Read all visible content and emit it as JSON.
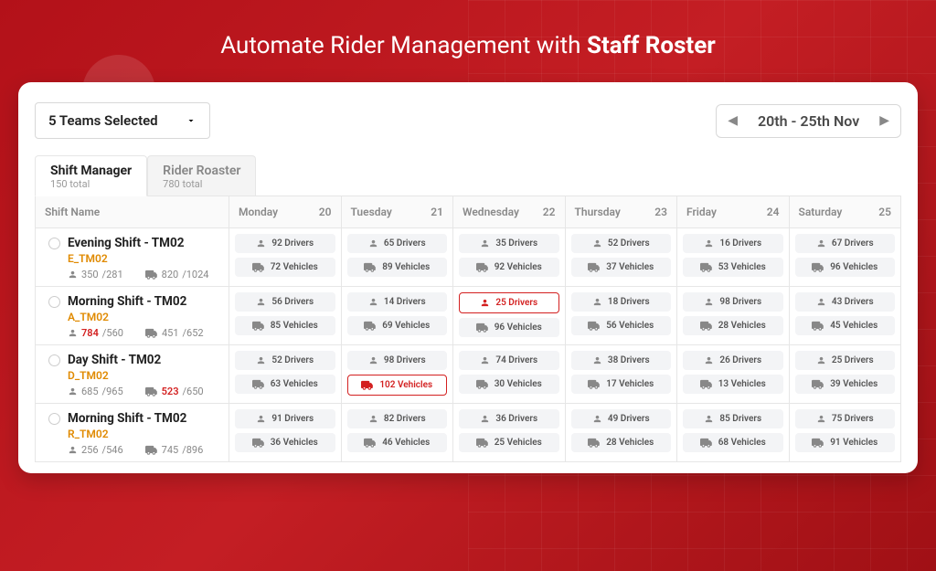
{
  "title_pre": "Automate Rider Management with ",
  "title_bold": "Staff Roster",
  "team_select_label": "5 Teams Selected",
  "date_range_label": "20th - 25th Nov",
  "tabs": [
    {
      "title": "Shift Manager",
      "sub": "150 total",
      "active": true
    },
    {
      "title": "Rider Roaster",
      "sub": "780 total",
      "active": false
    }
  ],
  "shift_col_header": "Shift Name",
  "days": [
    {
      "name": "Monday",
      "num": "20"
    },
    {
      "name": "Tuesday",
      "num": "21"
    },
    {
      "name": "Wednesday",
      "num": "22"
    },
    {
      "name": "Thursday",
      "num": "23"
    },
    {
      "name": "Friday",
      "num": "24"
    },
    {
      "name": "Saturday",
      "num": "25"
    }
  ],
  "shifts": [
    {
      "name": "Evening Shift - TM02",
      "code": "E_TM02",
      "people_a": "350",
      "people_b": "/281",
      "people_alert": false,
      "veh_a": "820",
      "veh_b": "/1024",
      "veh_alert": false,
      "cells": [
        {
          "d": "92 Drivers",
          "v": "72 Vehicles"
        },
        {
          "d": "65 Drivers",
          "v": "89 Vehicles"
        },
        {
          "d": "35 Drivers",
          "v": "92 Vehicles"
        },
        {
          "d": "52 Drivers",
          "v": "37 Vehicles"
        },
        {
          "d": "16 Drivers",
          "v": "53 Vehicles"
        },
        {
          "d": "67 Drivers",
          "v": "96 Vehicles"
        }
      ]
    },
    {
      "name": "Morning Shift - TM02",
      "code": "A_TM02",
      "people_a": "784",
      "people_b": "/560",
      "people_alert": true,
      "veh_a": "451",
      "veh_b": "/652",
      "veh_alert": false,
      "cells": [
        {
          "d": "56 Drivers",
          "v": "85 Vehicles"
        },
        {
          "d": "14 Drivers",
          "v": "69 Vehicles"
        },
        {
          "d": "25 Drivers",
          "v": "96 Vehicles",
          "d_alert": true
        },
        {
          "d": "18 Drivers",
          "v": "56 Vehicles"
        },
        {
          "d": "98 Drivers",
          "v": "28 Vehicles"
        },
        {
          "d": "43 Drivers",
          "v": "45 Vehicles"
        }
      ]
    },
    {
      "name": "Day Shift - TM02",
      "code": "D_TM02",
      "people_a": "685",
      "people_b": "/965",
      "people_alert": false,
      "veh_a": "523",
      "veh_b": "/650",
      "veh_alert": true,
      "cells": [
        {
          "d": "52 Drivers",
          "v": "63 Vehicles"
        },
        {
          "d": "98 Drivers",
          "v": "102 Vehicles",
          "v_alert": true
        },
        {
          "d": "74 Drivers",
          "v": "30 Vehicles"
        },
        {
          "d": "38 Drivers",
          "v": "17 Vehicles"
        },
        {
          "d": "26 Drivers",
          "v": "13 Vehicles"
        },
        {
          "d": "25 Drivers",
          "v": "39 Vehicles"
        }
      ]
    },
    {
      "name": "Morning Shift - TM02",
      "code": "R_TM02",
      "people_a": "256",
      "people_b": "/546",
      "people_alert": false,
      "veh_a": "745",
      "veh_b": "/896",
      "veh_alert": false,
      "cells": [
        {
          "d": "91 Drivers",
          "v": "36 Vehicles"
        },
        {
          "d": "82 Drivers",
          "v": "46 Vehicles"
        },
        {
          "d": "36 Drivers",
          "v": "25 Vehicles"
        },
        {
          "d": "49 Drivers",
          "v": "28 Vehicles"
        },
        {
          "d": "85 Drivers",
          "v": "68 Vehicles"
        },
        {
          "d": "75 Drivers",
          "v": "91 Vehicles"
        }
      ]
    }
  ]
}
